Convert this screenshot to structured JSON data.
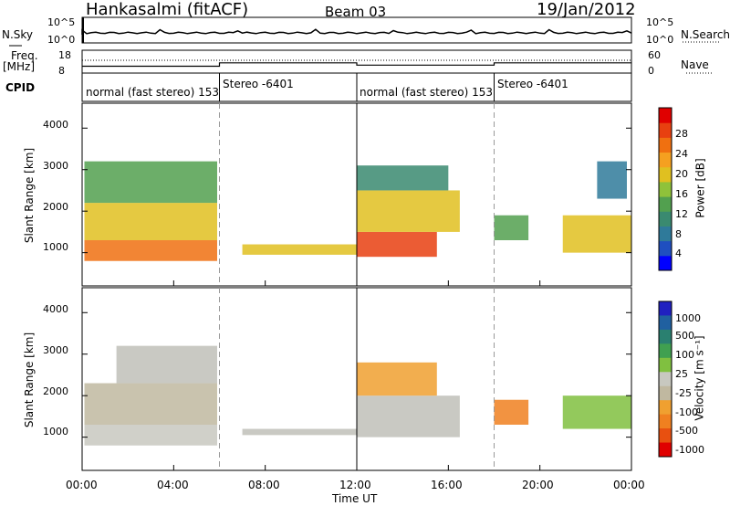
{
  "header": {
    "station": "Hankasalmi (fitACF)",
    "beam": "Beam 03",
    "date": "19/Jan/2012"
  },
  "strips": {
    "nsky_label": "N.Sky",
    "nsearch_label": "N.Search",
    "noise_ticks_left": [
      "10^5",
      "10^0"
    ],
    "noise_ticks_right": [
      "10^5",
      "10^0"
    ],
    "freq_label_1": "Freq.",
    "freq_label_2": "[MHz]",
    "freq_ticks": [
      "18",
      "8"
    ],
    "nave_label": "Nave",
    "nave_ticks": [
      "60",
      "0"
    ],
    "cpid_label": "CPID"
  },
  "modes": [
    {
      "label": "normal (fast stereo) 153",
      "start_hour": 0
    },
    {
      "label": "Stereo -6401",
      "start_hour": 6
    },
    {
      "label": "normal (fast stereo) 153",
      "start_hour": 12
    },
    {
      "label": "Stereo -6401",
      "start_hour": 18
    }
  ],
  "colors": {
    "power_scale": [
      "#0000ff",
      "#1f4fc0",
      "#2f7a9a",
      "#3a8a70",
      "#52a04f",
      "#8fc23a",
      "#e0c020",
      "#f5a020",
      "#f07010",
      "#e84010",
      "#e00000"
    ],
    "velocity_scale": [
      "#2020c0",
      "#2060a0",
      "#2a8070",
      "#40a050",
      "#80c040",
      "#c8c8c0",
      "#c0b8a0",
      "#f0a030",
      "#f08020",
      "#e85010",
      "#e00000"
    ],
    "ground_scatter": "#c0c0b8"
  },
  "chart_data": [
    {
      "type": "heatmap",
      "name": "power",
      "ylabel": "Slant Range [km]",
      "ylim": [
        200,
        4600
      ],
      "yticks": [
        "1000",
        "2000",
        "3000",
        "4000"
      ],
      "x_range_hours": [
        0,
        24
      ],
      "colorbar_label": "Power [dB]",
      "colorbar_ticks": [
        "4",
        "8",
        "12",
        "16",
        "20",
        "24",
        "28"
      ],
      "colorbar_range": [
        0,
        32
      ],
      "echo_regions": [
        {
          "t0": 0.1,
          "t1": 5.9,
          "r0": 800,
          "r1": 1300,
          "level": 26
        },
        {
          "t0": 0.1,
          "t1": 5.9,
          "r0": 1300,
          "r1": 2200,
          "level": 18
        },
        {
          "t0": 0.1,
          "t1": 5.9,
          "r0": 2200,
          "r1": 3200,
          "level": 12
        },
        {
          "t0": 7.0,
          "t1": 12.0,
          "r0": 950,
          "r1": 1200,
          "level": 20
        },
        {
          "t0": 12.0,
          "t1": 15.5,
          "r0": 900,
          "r1": 1500,
          "level": 28
        },
        {
          "t0": 12.0,
          "t1": 16.5,
          "r0": 1500,
          "r1": 2500,
          "level": 20
        },
        {
          "t0": 12.0,
          "t1": 16.0,
          "r0": 2500,
          "r1": 3100,
          "level": 10
        },
        {
          "t0": 18.0,
          "t1": 19.5,
          "r0": 1300,
          "r1": 1900,
          "level": 12
        },
        {
          "t0": 21.0,
          "t1": 24.0,
          "r0": 1000,
          "r1": 1900,
          "level": 18
        },
        {
          "t0": 22.5,
          "t1": 23.8,
          "r0": 2300,
          "r1": 3200,
          "level": 6
        }
      ]
    },
    {
      "type": "heatmap",
      "name": "velocity",
      "ylabel": "Slant Range [km]",
      "ylim": [
        200,
        4600
      ],
      "yticks": [
        "1000",
        "2000",
        "3000",
        "4000"
      ],
      "x_range_hours": [
        0,
        24
      ],
      "xlabel": "Time UT",
      "xticks": [
        "00:00",
        "04:00",
        "08:00",
        "12:00",
        "16:00",
        "20:00",
        "00:00"
      ],
      "colorbar_label": "Velocity [m s⁻¹]",
      "colorbar_ticks": [
        "1000",
        "500",
        "100",
        "25",
        "-25",
        "-100",
        "-500",
        "-1000"
      ],
      "echo_regions": [
        {
          "t0": 0.1,
          "t1": 5.9,
          "r0": 800,
          "r1": 1300,
          "level": 50
        },
        {
          "t0": 0.1,
          "t1": 5.9,
          "r0": 1300,
          "r1": 2300,
          "level": -100
        },
        {
          "t0": 1.5,
          "t1": 5.9,
          "r0": 2300,
          "r1": 3200,
          "level": 0
        },
        {
          "t0": 7.0,
          "t1": 12.0,
          "r0": 1050,
          "r1": 1200,
          "level": 0
        },
        {
          "t0": 12.0,
          "t1": 16.5,
          "r0": 1000,
          "r1": 2000,
          "level": 0
        },
        {
          "t0": 12.0,
          "t1": 15.5,
          "r0": 2000,
          "r1": 2800,
          "level": -300
        },
        {
          "t0": 18.0,
          "t1": 19.5,
          "r0": 1300,
          "r1": 1900,
          "level": -500
        },
        {
          "t0": 21.0,
          "t1": 24.0,
          "r0": 1200,
          "r1": 2000,
          "level": 300
        }
      ]
    }
  ],
  "freq_series_mhz": [
    [
      0,
      11
    ],
    [
      6,
      11
    ],
    [
      6,
      12.5
    ],
    [
      12,
      12.5
    ],
    [
      12,
      11.5
    ],
    [
      18,
      11.5
    ],
    [
      18,
      12.5
    ],
    [
      24,
      12.5
    ]
  ],
  "cpid_transitions_hours": [
    0,
    6,
    12,
    18
  ]
}
